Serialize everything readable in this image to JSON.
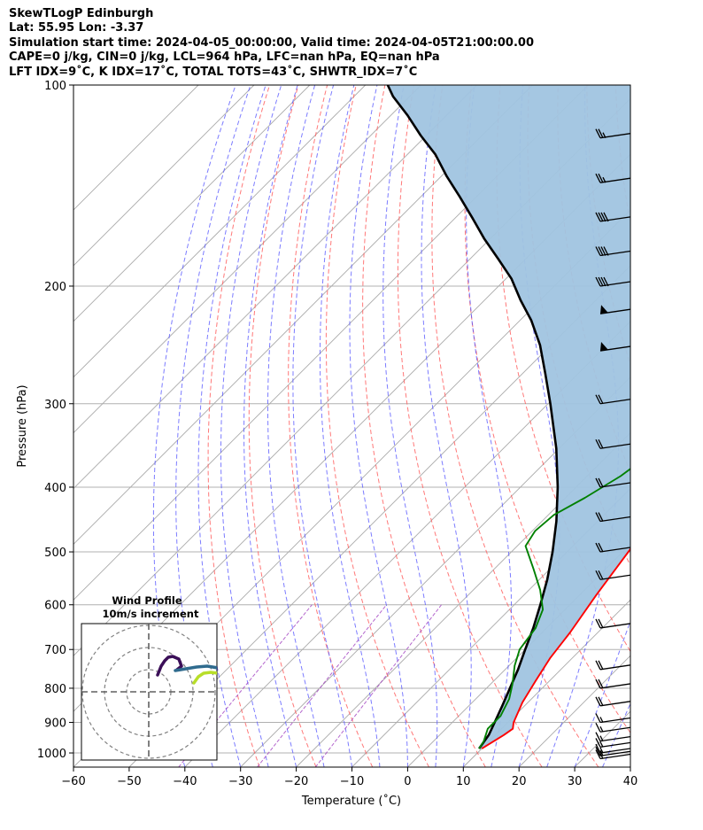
{
  "header": {
    "line1": "SkewTLogP Edinburgh",
    "line2": "Lat: 55.95   Lon: -3.37",
    "line3": "Simulation start time: 2024-04-05_00:00:00, Valid time: 2024-04-05T21:00:00.00",
    "line4": "CAPE=0 j/kg, CIN=0 j/kg, LCL=964 hPa, LFC=nan hPa, EQ=nan hPa",
    "line5": "LFT IDX=9˚C, K IDX=17˚C, TOTAL TOTS=43˚C, SHWTR_IDX=7˚C"
  },
  "colors": {
    "temperature": "#ff0000",
    "dewpoint": "#008000",
    "parcel": "#000000",
    "fill": "#a0c4e0",
    "dry_adiabat": "#ff6060",
    "moist_adiabat": "#5050ff",
    "mixing_ratio": "#a040c0",
    "isotherm": "#aaaaaa"
  },
  "chart_data": [
    {
      "type": "line",
      "title": "Skew-T Log-P diagram",
      "xlabel": "Temperature (˚C)",
      "ylabel": "Pressure (hPa)",
      "xlim": [
        -60,
        40
      ],
      "ylim": [
        1050,
        100
      ],
      "y_scale": "log",
      "x_ticks": [
        "−60",
        "−50",
        "−40",
        "−30",
        "−20",
        "−10",
        "0",
        "10",
        "20",
        "30",
        "40"
      ],
      "x_tick_values": [
        -60,
        -50,
        -40,
        -30,
        -20,
        -10,
        0,
        10,
        20,
        30,
        40
      ],
      "y_ticks": [
        "1000",
        "900",
        "800",
        "700",
        "600",
        "500",
        "400",
        "300",
        "200",
        "100"
      ],
      "y_tick_values": [
        1000,
        900,
        800,
        700,
        600,
        500,
        400,
        300,
        200,
        100
      ],
      "series": [
        {
          "name": "Temperature",
          "points": [
            [
              10,
              985
            ],
            [
              11.5,
              940
            ],
            [
              12,
              920
            ],
            [
              11,
              900
            ],
            [
              9,
              840
            ],
            [
              7.5,
              780
            ],
            [
              6,
              720
            ],
            [
              5,
              660
            ],
            [
              3,
              580
            ],
            [
              1,
              500
            ],
            [
              -1,
              440
            ],
            [
              -3,
              390
            ],
            [
              -5.5,
              340
            ],
            [
              -7.5,
              310
            ],
            [
              -10,
              290
            ],
            [
              -12,
              270
            ],
            [
              -14,
              250
            ],
            [
              -17,
              236
            ],
            [
              -18.5,
              225
            ],
            [
              -19.5,
              212
            ],
            [
              -20,
              200
            ],
            [
              -20,
              194
            ],
            [
              -18.5,
              188
            ],
            [
              -17,
              182
            ],
            [
              -15,
              176
            ],
            [
              -13,
              170
            ],
            [
              -11,
              165
            ],
            [
              -10,
              160
            ],
            [
              -9,
              155
            ],
            [
              -8,
              148
            ],
            [
              -6.5,
              140
            ],
            [
              -5,
              131
            ],
            [
              -3.5,
              123
            ],
            [
              -2,
              118
            ],
            [
              1,
              112
            ],
            [
              3,
              107
            ],
            [
              5,
              103
            ],
            [
              6,
              100
            ]
          ]
        },
        {
          "name": "Dewpoint",
          "points": [
            [
              9.5,
              985
            ],
            [
              9,
              960
            ],
            [
              7.5,
              920
            ],
            [
              7.5,
              880
            ],
            [
              6,
              830
            ],
            [
              4,
              790
            ],
            [
              1,
              740
            ],
            [
              -1,
              700
            ],
            [
              -2,
              650
            ],
            [
              -4,
              610
            ],
            [
              -8,
              570
            ],
            [
              -13,
              530
            ],
            [
              -18.5,
              490
            ],
            [
              -19.5,
              465
            ],
            [
              -19,
              440
            ],
            [
              -16.5,
              415
            ],
            [
              -14,
              385
            ],
            [
              -13,
              365
            ],
            [
              -12,
              350
            ],
            [
              -11.5,
              330
            ],
            [
              -13,
              315
            ],
            [
              -15,
              300
            ],
            [
              -18.5,
              285
            ],
            [
              -20,
              265
            ],
            [
              -21,
              250
            ],
            [
              -23,
              235
            ],
            [
              -24.5,
              220
            ],
            [
              -25.5,
              205
            ],
            [
              -26,
              198
            ],
            [
              -27,
              192
            ],
            [
              -28.5,
              186
            ],
            [
              -30,
              180
            ],
            [
              -31,
              177
            ],
            [
              -29.5,
              171
            ],
            [
              -28,
              164
            ],
            [
              -26.5,
              157
            ],
            [
              -25,
              150
            ],
            [
              -23.5,
              143
            ],
            [
              -22,
              135
            ],
            [
              -20,
              127
            ],
            [
              -18,
              120
            ],
            [
              -16,
              114
            ],
            [
              -14,
              108
            ],
            [
              -12,
              103
            ],
            [
              -11,
              100
            ]
          ]
        },
        {
          "name": "Parcel",
          "points": [
            [
              9.5,
              985
            ],
            [
              8.8,
              940
            ],
            [
              7.6,
              900
            ],
            [
              6,
              850
            ],
            [
              4.2,
              800
            ],
            [
              2.3,
              750
            ],
            [
              0,
              700
            ],
            [
              -2.4,
              650
            ],
            [
              -5.3,
              600
            ],
            [
              -8.6,
              550
            ],
            [
              -12.6,
              500
            ],
            [
              -17.4,
              450
            ],
            [
              -23.3,
              400
            ],
            [
              -30.5,
              350
            ],
            [
              -39.6,
              300
            ],
            [
              -46,
              270
            ],
            [
              -52,
              245
            ],
            [
              -58,
              225
            ],
            [
              -63.5,
              210
            ],
            [
              -69,
              195
            ],
            [
              -75,
              182
            ],
            [
              -81,
              170
            ],
            [
              -87,
              158
            ],
            [
              -93,
              147
            ],
            [
              -99,
              137
            ],
            [
              -105,
              127
            ],
            [
              -111,
              119
            ],
            [
              -117,
              111
            ],
            [
              -123,
              104
            ],
            [
              -126,
              100
            ]
          ]
        }
      ],
      "wind_barbs_pressure_hPa": [
        1020,
        1010,
        1000,
        980,
        960,
        930,
        900,
        850,
        800,
        750,
        650,
        550,
        500,
        450,
        400,
        350,
        300,
        250,
        220,
        200,
        180,
        160,
        140,
        120
      ]
    },
    {
      "type": "line",
      "title": "Wind Profile",
      "subtitle": "10m/s increment",
      "ring_increment_ms": 10,
      "rings": [
        10,
        20,
        30
      ]
    }
  ]
}
